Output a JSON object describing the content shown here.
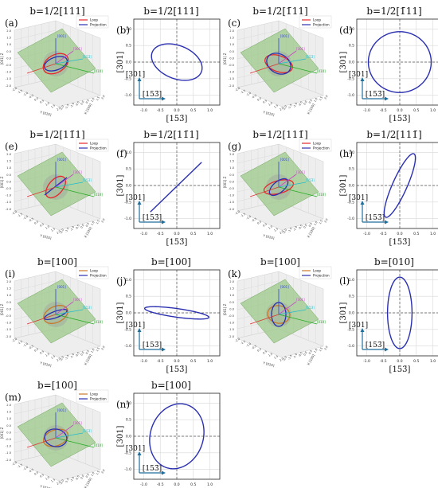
{
  "figure": {
    "panels": [
      {
        "letter": "(a)",
        "title": "b=1/2[111]"
      },
      {
        "letter": "(b)",
        "title": "b=1/2[111]"
      },
      {
        "letter": "(c)",
        "title": "b=1/2[1̄11]"
      },
      {
        "letter": "(d)",
        "title": "b=1/2[1̄11]"
      },
      {
        "letter": "(e)",
        "title": "b=1/2[11̄1]"
      },
      {
        "letter": "(f)",
        "title": "b=1/2[11̄1]"
      },
      {
        "letter": "(g)",
        "title": "b=1/2[111̄]"
      },
      {
        "letter": "(h)",
        "title": "b=1/2[111̄]"
      },
      {
        "letter": "(i)",
        "title": "b=[100]"
      },
      {
        "letter": "(j)",
        "title": "b=[100]"
      },
      {
        "letter": "(k)",
        "title": "b=[100]"
      },
      {
        "letter": "(l)",
        "title": "b=[010]"
      },
      {
        "letter": "(m)",
        "title": "b=[100]"
      },
      {
        "letter": "(n)",
        "title": "b=[100]"
      }
    ],
    "legend": {
      "loop": "Loop",
      "projection": "Projection"
    },
    "axes3d": {
      "zlabel": "[001] Z",
      "xlabel": "X [100]",
      "ylabel": "Y [010]",
      "ticks": [
        "-2.0",
        "-1.5",
        "-1.0",
        "-0.5",
        "0.0",
        "0.5",
        "1.0",
        "1.5",
        "2.0"
      ],
      "dir_labels": [
        "[001]",
        "[301]",
        "[153̄]",
        "[010]"
      ]
    },
    "axes2d": {
      "xlabel": "[153̄]",
      "ylabel": "[301]",
      "arrow_x_label": "[153̄]",
      "arrow_y_label": "[301]",
      "xticks": [
        "-1.0",
        "-0.5",
        "0.0",
        "0.5",
        "1.0"
      ],
      "yticks": [
        "1.0",
        "0.5",
        "0.0",
        "-0.5",
        "-1.0"
      ]
    },
    "colors": {
      "loop": "#e8262a",
      "projection": "#2a2fb0",
      "plane": "#9cc88a",
      "arrow": "#1f6e9c",
      "grid": "#d8d8d8"
    }
  },
  "chart_data": [
    {
      "panel": "(b)",
      "type": "line",
      "shape": "ellipse",
      "center": [
        0,
        0
      ],
      "semi_major": 0.8,
      "semi_minor": 0.5,
      "angle_deg": -22,
      "xlim": [
        -1.3,
        1.3
      ],
      "ylim": [
        -1.3,
        1.3
      ],
      "grid": true
    },
    {
      "panel": "(d)",
      "type": "line",
      "shape": "ellipse",
      "center": [
        0,
        0
      ],
      "semi_major": 0.95,
      "semi_minor": 0.92,
      "angle_deg": 0,
      "xlim": [
        -1.3,
        1.3
      ],
      "ylim": [
        -1.3,
        1.3
      ],
      "grid": true
    },
    {
      "panel": "(f)",
      "type": "line",
      "shape": "segment",
      "x": [
        -0.8,
        0.75
      ],
      "y": [
        -0.8,
        0.7
      ],
      "xlim": [
        -1.3,
        1.3
      ],
      "ylim": [
        -1.3,
        1.3
      ],
      "grid": true
    },
    {
      "panel": "(h)",
      "type": "line",
      "shape": "ellipse",
      "center": [
        0,
        0
      ],
      "semi_major": 1.05,
      "semi_minor": 0.22,
      "angle_deg": 66,
      "xlim": [
        -1.3,
        1.3
      ],
      "ylim": [
        -1.3,
        1.3
      ],
      "grid": true
    },
    {
      "panel": "(j)",
      "type": "line",
      "shape": "ellipse",
      "center": [
        0,
        0
      ],
      "semi_major": 0.98,
      "semi_minor": 0.13,
      "angle_deg": -8,
      "xlim": [
        -1.3,
        1.3
      ],
      "ylim": [
        -1.3,
        1.3
      ],
      "grid": true
    },
    {
      "panel": "(l)",
      "type": "line",
      "shape": "ellipse",
      "center": [
        0,
        0
      ],
      "semi_major": 1.08,
      "semi_minor": 0.37,
      "angle_deg": 90,
      "xlim": [
        -1.3,
        1.3
      ],
      "ylim": [
        -1.3,
        1.3
      ],
      "grid": true
    },
    {
      "panel": "(n)",
      "type": "line",
      "shape": "ellipse",
      "center": [
        0,
        0
      ],
      "semi_major": 1.0,
      "semi_minor": 0.8,
      "angle_deg": 72,
      "xlim": [
        -1.3,
        1.3
      ],
      "ylim": [
        -1.3,
        1.3
      ],
      "grid": true
    }
  ]
}
